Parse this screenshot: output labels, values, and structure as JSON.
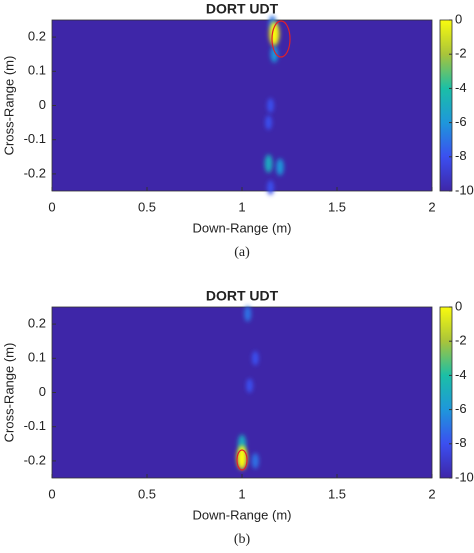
{
  "chart_data": [
    {
      "type": "heatmap",
      "title": "DORT UDT",
      "caption": "(a)",
      "x_label": "Down-Range (m)",
      "y_label": "Cross-Range (m)",
      "xlim": [
        0,
        2
      ],
      "xticks": [
        0,
        0.5,
        1,
        1.5,
        2
      ],
      "ylim": [
        -0.25,
        0.25
      ],
      "yticks": [
        -0.2,
        -0.1,
        0,
        0.1,
        0.2
      ],
      "clim": [
        -10,
        0
      ],
      "cticks": [
        -10,
        -8,
        -6,
        -4,
        -2,
        0
      ],
      "x": [
        1.17,
        1.17,
        1.16,
        1.14,
        1.2,
        1.15,
        1.14,
        1.15
      ],
      "y": [
        0.21,
        0.15,
        0.24,
        -0.17,
        -0.18,
        0.0,
        -0.05,
        -0.24
      ],
      "values": [
        0,
        -6,
        -7,
        -5,
        -6,
        -8,
        -8,
        -8
      ]
    },
    {
      "type": "heatmap",
      "title": "DORT UDT",
      "caption": "(b)",
      "x_label": "Down-Range (m)",
      "y_label": "Cross-Range (m)",
      "xlim": [
        0,
        2
      ],
      "xticks": [
        0,
        0.5,
        1,
        1.5,
        2
      ],
      "ylim": [
        -0.25,
        0.25
      ],
      "yticks": [
        -0.2,
        -0.1,
        0,
        0.1,
        0.2
      ],
      "clim": [
        -10,
        0
      ],
      "cticks": [
        -10,
        -8,
        -6,
        -4,
        -2,
        0
      ],
      "x": [
        1.0,
        1.0,
        1.07,
        1.03,
        1.07,
        1.04
      ],
      "y": [
        -0.19,
        -0.15,
        -0.2,
        0.23,
        0.1,
        0.02
      ],
      "values": [
        0,
        -5,
        -7,
        -7,
        -8,
        -8
      ]
    }
  ]
}
